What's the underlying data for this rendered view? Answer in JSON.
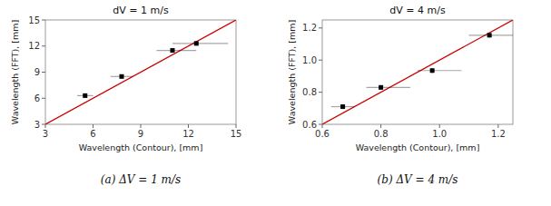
{
  "chart_data": [
    {
      "type": "scatter",
      "title": "dV = 1 m/s",
      "x_label": "Wavelength (Contour), [mm]",
      "y_label": "Wavelength (FFT), [mm]",
      "caption": "(a) ΔV = 1 m/s",
      "xlim": [
        3,
        15
      ],
      "ylim": [
        3,
        15
      ],
      "xticks": [
        3,
        6,
        9,
        12,
        15
      ],
      "yticks": [
        3,
        6,
        9,
        12,
        15
      ],
      "series": [
        {
          "type": "scatter",
          "color": "#000000",
          "marker": "square",
          "x": [
            5.5,
            7.8,
            11.0,
            12.5
          ],
          "values": [
            6.3,
            8.5,
            11.5,
            12.3
          ],
          "xerr_lo": [
            0.5,
            0.7,
            1.0,
            1.5
          ],
          "xerr_hi": [
            0.5,
            0.7,
            1.5,
            2.0
          ],
          "yerr_lo": [
            0.2,
            0.2,
            0.2,
            0.2
          ],
          "yerr_hi": [
            0.2,
            0.2,
            0.2,
            0.2
          ]
        },
        {
          "type": "line",
          "color": "#cc0000",
          "x": [
            3,
            15
          ],
          "values": [
            3,
            15
          ]
        }
      ]
    },
    {
      "type": "scatter",
      "title": "dV = 4 m/s",
      "x_label": "Wavelength (Contour), [mm]",
      "y_label": "Wavelength (FFT), [mm]",
      "caption": "(b) ΔV = 4 m/s",
      "xlim": [
        0.6,
        1.25
      ],
      "ylim": [
        0.6,
        1.25
      ],
      "xticks": [
        0.6,
        0.8,
        {
          "value": 1.0,
          "label": "1.0"
        },
        1.2
      ],
      "yticks": [
        0.6,
        0.8,
        {
          "value": 1.0,
          "label": "1.0"
        },
        1.2
      ],
      "series": [
        {
          "type": "scatter",
          "color": "#000000",
          "marker": "square",
          "x": [
            0.67,
            0.8,
            0.975,
            1.17
          ],
          "values": [
            0.71,
            0.83,
            0.935,
            1.155
          ],
          "xerr_lo": [
            0.04,
            0.05,
            0.05,
            0.07
          ],
          "xerr_hi": [
            0.04,
            0.1,
            0.1,
            0.08
          ],
          "yerr_lo": [
            0.015,
            0.015,
            0.015,
            0.015
          ],
          "yerr_hi": [
            0.015,
            0.015,
            0.015,
            0.015
          ]
        },
        {
          "type": "line",
          "color": "#cc0000",
          "x": [
            0.6,
            1.25
          ],
          "values": [
            0.6,
            1.25
          ]
        }
      ]
    }
  ]
}
